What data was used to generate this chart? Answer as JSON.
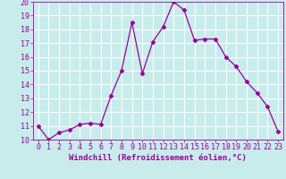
{
  "x": [
    0,
    1,
    2,
    3,
    4,
    5,
    6,
    7,
    8,
    9,
    10,
    11,
    12,
    13,
    14,
    15,
    16,
    17,
    18,
    19,
    20,
    21,
    22,
    23
  ],
  "y": [
    11,
    10,
    10.5,
    10.7,
    11.1,
    11.2,
    11.1,
    13.2,
    15.0,
    18.5,
    14.8,
    17.1,
    18.2,
    20.0,
    19.4,
    17.2,
    17.3,
    17.3,
    16.0,
    15.3,
    14.2,
    13.4,
    12.4,
    10.6
  ],
  "ylim": [
    10,
    20
  ],
  "xlim_min": -0.5,
  "xlim_max": 23.5,
  "yticks": [
    10,
    11,
    12,
    13,
    14,
    15,
    16,
    17,
    18,
    19,
    20
  ],
  "xticks": [
    0,
    1,
    2,
    3,
    4,
    5,
    6,
    7,
    8,
    9,
    10,
    11,
    12,
    13,
    14,
    15,
    16,
    17,
    18,
    19,
    20,
    21,
    22,
    23
  ],
  "xlabel": "Windchill (Refroidissement éolien,°C)",
  "line_color": "#990099",
  "marker": "D",
  "marker_size": 2.5,
  "bg_color": "#c8ecec",
  "grid_color": "#b0d8d8",
  "tick_color": "#990099",
  "label_color": "#990099",
  "xlabel_fontsize": 6.5,
  "tick_fontsize": 6.0
}
